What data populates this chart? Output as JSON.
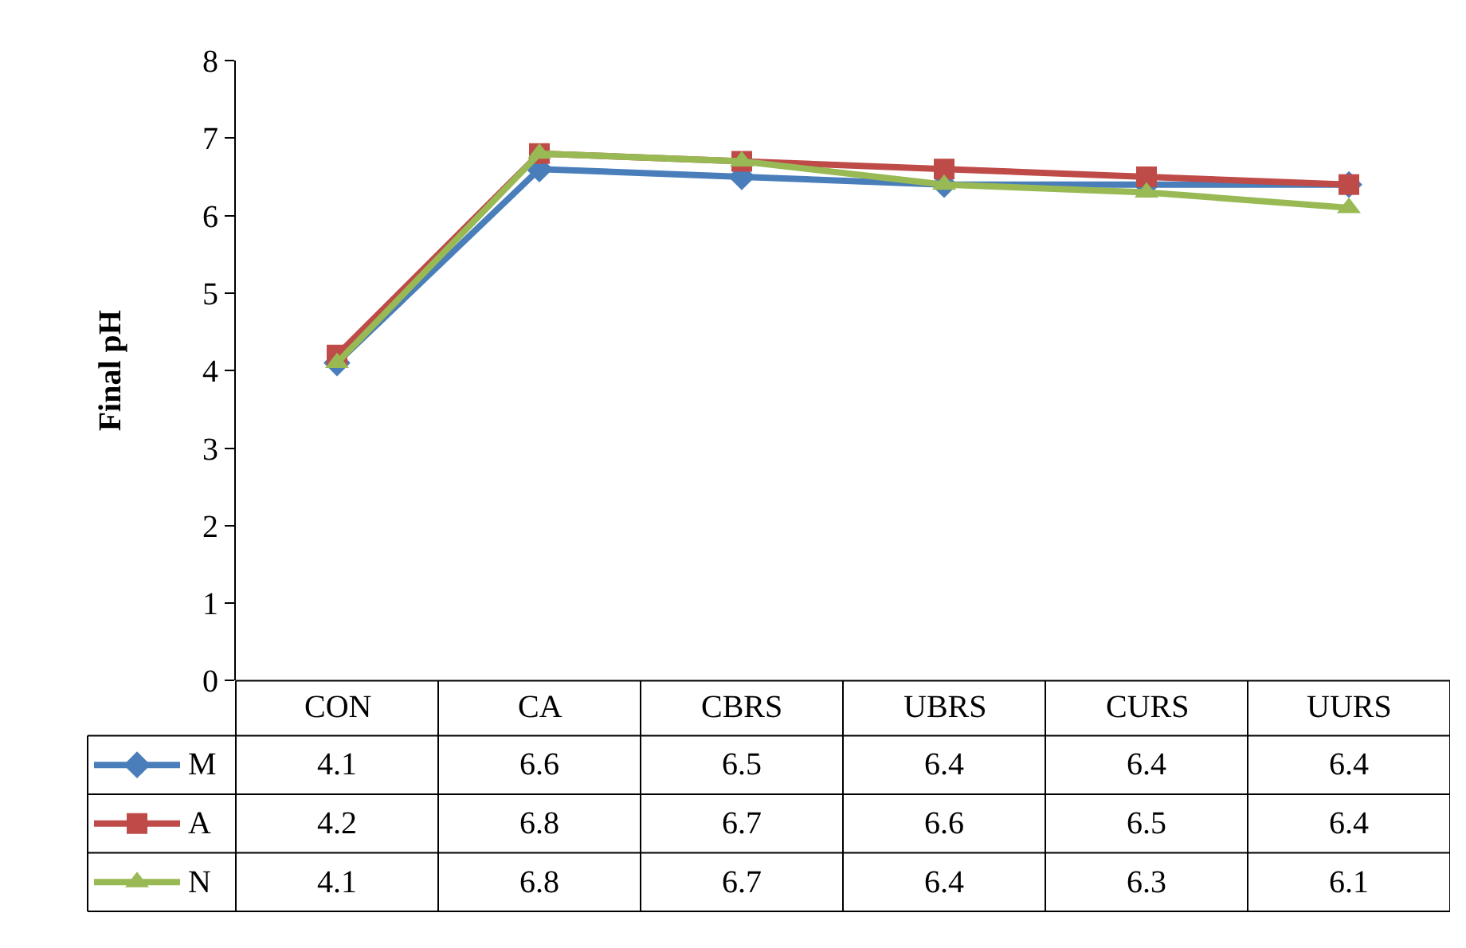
{
  "chart_data": {
    "type": "line",
    "ylabel": "Final pH",
    "categories": [
      "CON",
      "CA",
      "CBRS",
      "UBRS",
      "CURS",
      "UURS"
    ],
    "series": [
      {
        "name": "M",
        "color": "#4a7ebb",
        "marker": "diamond",
        "values": [
          4.1,
          6.6,
          6.5,
          6.4,
          6.4,
          6.4
        ]
      },
      {
        "name": "A",
        "color": "#be4b48",
        "marker": "square",
        "values": [
          4.2,
          6.8,
          6.7,
          6.6,
          6.5,
          6.4
        ]
      },
      {
        "name": "N",
        "color": "#98b954",
        "marker": "triangle",
        "values": [
          4.1,
          6.8,
          6.7,
          6.4,
          6.3,
          6.1
        ]
      }
    ],
    "ylim": [
      0,
      8
    ],
    "yticks": [
      0,
      1,
      2,
      3,
      4,
      5,
      6,
      7,
      8
    ],
    "grid": false,
    "legend": "bottom",
    "data_labels": true
  }
}
